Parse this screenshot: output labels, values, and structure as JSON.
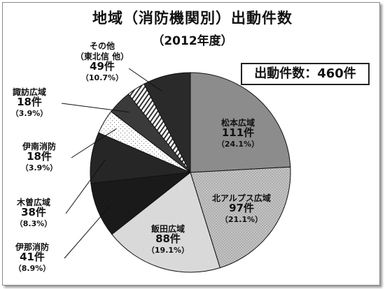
{
  "title": "地域（消防機関別）出動件数",
  "subtitle": "（2012年度）",
  "total_label": "出動件数：460件",
  "chart_data": {
    "type": "pie",
    "title": "地域（消防機関別）出動件数",
    "subtitle": "（2012年度）",
    "total": 460,
    "slices": [
      {
        "name": "松本広域",
        "count_text": "111件",
        "pct_text": "（24.1%）",
        "value": 111,
        "percent": 24.1,
        "color": "#8c8c8c",
        "pattern": "solid"
      },
      {
        "name": "北アルプス広域",
        "count_text": "97件",
        "pct_text": "（21.1%）",
        "value": 97,
        "percent": 21.1,
        "color": "#bcbcbc",
        "pattern": "dots"
      },
      {
        "name": "飯田広域",
        "count_text": "88件",
        "pct_text": "（19.1%）",
        "value": 88,
        "percent": 19.1,
        "color": "#d9d9d9",
        "pattern": "solid"
      },
      {
        "name": "伊那消防",
        "count_text": "41件",
        "pct_text": "（8.9%）",
        "value": 41,
        "percent": 8.9,
        "color": "#1a1a1a",
        "pattern": "solid"
      },
      {
        "name": "木曽広域",
        "count_text": "38件",
        "pct_text": "（8.3%）",
        "value": 38,
        "percent": 8.3,
        "color": "#262626",
        "pattern": "solid"
      },
      {
        "name": "伊南消防",
        "count_text": "18件",
        "pct_text": "（3.9%）",
        "value": 18,
        "percent": 3.9,
        "color": "#ffffff",
        "pattern": "sparse-dots"
      },
      {
        "name": "諏訪広域",
        "count_text": "18件",
        "pct_text": "（3.9%）",
        "value": 18,
        "percent": 3.9,
        "color": "#3a3a3a",
        "pattern": "solid"
      },
      {
        "name": "その他 （東北信 他）",
        "count_text": "49件",
        "pct_text": "（10.7%）",
        "value": 49,
        "percent": 10.7,
        "color": "#2a2a2a",
        "pattern": "solid",
        "name_lines": [
          "その他",
          "（東北信 他）"
        ],
        "stripe_first": true
      }
    ]
  }
}
